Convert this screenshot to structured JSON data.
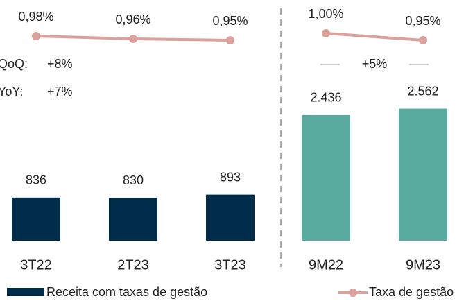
{
  "chart_data": [
    {
      "type": "combo",
      "categories": [
        "3T22",
        "2T23",
        "3T23"
      ],
      "series": [
        {
          "name": "Receita com taxas de gestão",
          "color": "#002b49",
          "values": [
            836,
            830,
            893
          ]
        },
        {
          "name": "Taxa de gestão",
          "color": "#dba19c",
          "values": [
            0.98,
            0.96,
            0.95
          ],
          "value_labels": [
            "0,98%",
            "0,96%",
            "0,95%"
          ],
          "axis": "y2"
        }
      ],
      "ylim": [
        0,
        3000
      ],
      "y2lim": [
        0.9,
        1.1
      ],
      "annotations": [
        {
          "label": "QoQ:",
          "text": "+8%"
        },
        {
          "label": "YoY:",
          "text": "+7%"
        }
      ]
    },
    {
      "type": "combo",
      "categories": [
        "9M22",
        "9M23"
      ],
      "series": [
        {
          "color": "#5aab9f",
          "values": [
            2436,
            2562
          ],
          "value_labels": [
            "2.436",
            "2.562"
          ]
        },
        {
          "color": "#dba19c",
          "values": [
            1.0,
            0.95
          ],
          "value_labels": [
            "1,00%",
            "0,95%"
          ],
          "axis": "y2"
        }
      ],
      "ylim": [
        0,
        3000
      ],
      "y2lim": [
        0.9,
        1.1
      ],
      "annotations": [
        {
          "text": "+5%"
        }
      ]
    }
  ]
}
